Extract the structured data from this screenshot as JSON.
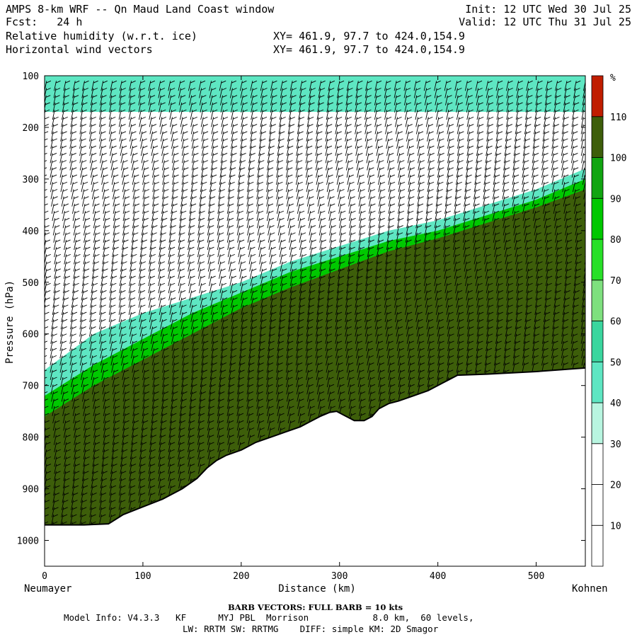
{
  "header": {
    "line1_left": "AMPS 8-km WRF -- Qn Maud Land Coast window",
    "line1_right": "Init: 12 UTC Wed 30 Jul 25",
    "line2_left": "Fcst:   24 h",
    "line2_right": "Valid: 12 UTC Thu 31 Jul 25",
    "line3_left": "Relative humidity (w.r.t. ice)",
    "line3_right": "XY= 461.9, 97.7 to 424.0,154.9",
    "line4_left": "Horizontal wind vectors",
    "line4_right": "XY= 461.9, 97.7 to 424.0,154.9"
  },
  "footer": {
    "barb_note": "BARB VECTORS:  FULL BARB = 10 kts",
    "model_info_1": "Model Info: V4.3.3   KF      MYJ PBL  Morrison            8.0 km,  60 levels,",
    "model_info_2": "LW: RRTM SW: RRTMG    DIFF: simple KM: 2D Smagor"
  },
  "chart_data": {
    "type": "heatmap",
    "title": "Relative humidity (w.r.t. ice)",
    "xlabel": "Distance (km)",
    "ylabel": "Pressure (hPa)",
    "xlim": [
      0,
      550
    ],
    "ylim": [
      1050,
      100
    ],
    "x_ticks": [
      0,
      100,
      200,
      300,
      400,
      500
    ],
    "y_ticks": [
      100,
      200,
      300,
      400,
      500,
      600,
      700,
      800,
      900,
      1000
    ],
    "x_endpoint_left": "Neumayer",
    "x_endpoint_right": "Kohnen",
    "colorbar": {
      "unit": "%",
      "levels": [
        10,
        20,
        30,
        40,
        50,
        60,
        70,
        80,
        90,
        100,
        110
      ],
      "colors": [
        "#ffffff",
        "#ffffff",
        "#ffffff",
        "#b8f5e0",
        "#5ee6c2",
        "#3ad69e",
        "#7ee07e",
        "#28e028",
        "#00c800",
        "#11a511",
        "#3d5e0a",
        "#c01d00"
      ]
    },
    "terrain": {
      "x": [
        0,
        20,
        40,
        65,
        80,
        100,
        120,
        140,
        155,
        165,
        175,
        185,
        200,
        215,
        230,
        245,
        260,
        270,
        280,
        290,
        297,
        305,
        315,
        325,
        333,
        340,
        350,
        360,
        375,
        390,
        405,
        420,
        450,
        500,
        550
      ],
      "p": [
        970,
        970,
        970,
        968,
        950,
        935,
        920,
        900,
        880,
        860,
        845,
        835,
        825,
        810,
        800,
        790,
        780,
        770,
        760,
        752,
        750,
        758,
        768,
        768,
        760,
        745,
        735,
        730,
        720,
        710,
        695,
        680,
        678,
        673,
        666
      ]
    },
    "rh_contours": [
      {
        "level": 40,
        "x": [
          0,
          50,
          100,
          150,
          200,
          250,
          300,
          350,
          400,
          450,
          500,
          550
        ],
        "p": [
          670,
          600,
          560,
          530,
          500,
          460,
          430,
          400,
          380,
          350,
          320,
          280
        ]
      },
      {
        "level": 80,
        "x": [
          0,
          50,
          100,
          150,
          200,
          250,
          300,
          350,
          400,
          450,
          500,
          550
        ],
        "p": [
          720,
          660,
          610,
          560,
          520,
          480,
          450,
          420,
          400,
          370,
          340,
          300
        ]
      },
      {
        "level": 100,
        "x": [
          0,
          50,
          100,
          150,
          200,
          250,
          300,
          350,
          400,
          450,
          500,
          550
        ],
        "p": [
          760,
          700,
          650,
          600,
          550,
          510,
          475,
          440,
          415,
          385,
          355,
          320
        ]
      }
    ],
    "upper_moist_layer": {
      "x": [
        0,
        550
      ],
      "p_top": [
        100,
        100
      ],
      "p_bottom": [
        170,
        170
      ],
      "rh": 40
    },
    "wind_barbs": {
      "note": "FULL BARB = 10 kts",
      "x_columns": [
        0,
        10,
        20,
        30,
        40,
        50,
        60,
        70,
        80,
        90,
        100,
        110,
        120,
        130,
        140,
        150,
        160,
        170,
        180,
        190,
        200,
        210,
        220,
        230,
        240,
        250,
        260,
        270,
        280,
        290,
        300,
        310,
        320,
        330,
        340,
        350,
        360,
        370,
        380,
        390,
        400,
        410,
        420,
        430,
        440,
        450,
        460,
        470,
        480,
        490,
        500,
        510,
        520,
        530,
        540,
        550
      ]
    }
  }
}
